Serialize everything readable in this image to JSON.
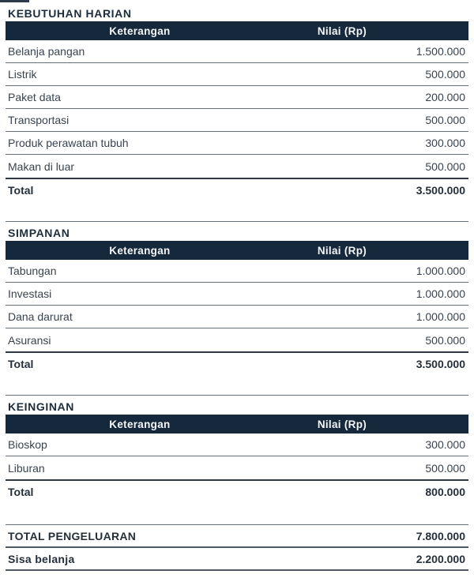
{
  "columns": {
    "label": "Keterangan",
    "value": "Nilai (Rp)"
  },
  "sections": [
    {
      "title": "KEBUTUHAN HARIAN",
      "rows": [
        {
          "label": "Belanja pangan",
          "value": "1.500.000"
        },
        {
          "label": "Listrik",
          "value": "500.000"
        },
        {
          "label": "Paket data",
          "value": "200.000"
        },
        {
          "label": "Transportasi",
          "value": "500.000"
        },
        {
          "label": "Produk perawatan tubuh",
          "value": "300.000"
        },
        {
          "label": "Makan di luar",
          "value": "500.000"
        }
      ],
      "total": {
        "label": "Total",
        "value": "3.500.000"
      }
    },
    {
      "title": "SIMPANAN",
      "rows": [
        {
          "label": "Tabungan",
          "value": "1.000.000"
        },
        {
          "label": "Investasi",
          "value": "1.000.000"
        },
        {
          "label": "Dana darurat",
          "value": "1.000.000"
        },
        {
          "label": "Asuransi",
          "value": "500.000"
        }
      ],
      "total": {
        "label": "Total",
        "value": "3.500.000"
      }
    },
    {
      "title": "KEINGINAN",
      "rows": [
        {
          "label": "Bioskop",
          "value": "300.000"
        },
        {
          "label": "Liburan",
          "value": "500.000"
        }
      ],
      "total": {
        "label": "Total",
        "value": "800.000"
      }
    }
  ],
  "summary": [
    {
      "label": "TOTAL PENGELUARAN",
      "value": "7.800.000"
    },
    {
      "label": "Sisa belanja",
      "value": "2.200.000"
    }
  ],
  "colors": {
    "header_bg": "#16293c",
    "header_text": "#f4f6f8",
    "body_text": "#39434f",
    "title_text": "#1e2d3d",
    "row_line": "#646e79",
    "heavy_line": "#2e3843"
  }
}
